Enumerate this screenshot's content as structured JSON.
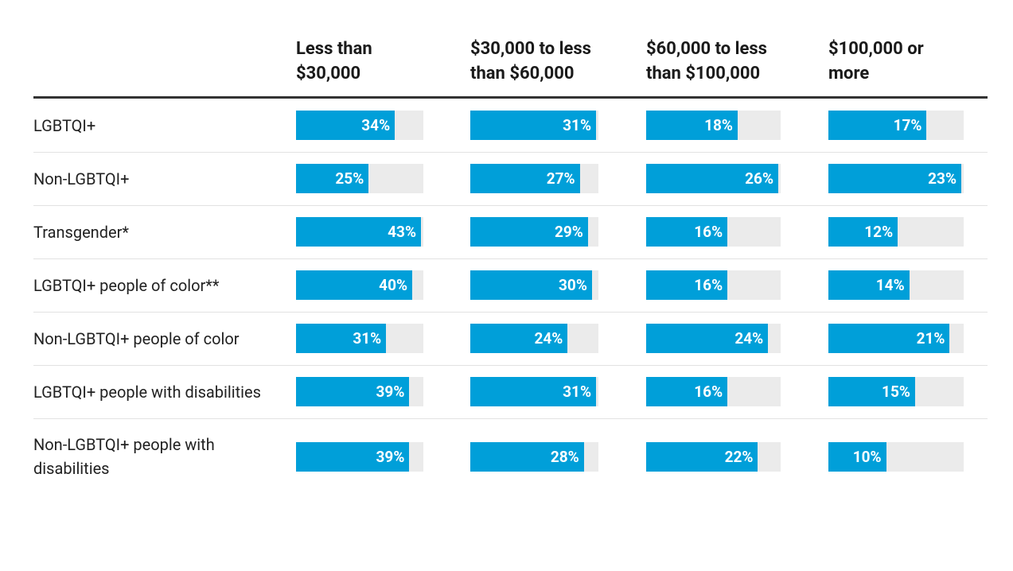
{
  "chart_data": {
    "type": "bar",
    "categories": [
      "LGBTQI+",
      "Non-LGBTQI+",
      "Transgender*",
      "LGBTQI+ people of color**",
      "Non-LGBTQI+ people of color",
      "LGBTQI+ people with disabilities",
      "Non-LGBTQI+ people with disabilities"
    ],
    "series": [
      {
        "name": "Less than $30,000",
        "color": "#009fd9",
        "values": [
          34,
          25,
          43,
          40,
          31,
          39,
          39
        ],
        "value_labels": [
          "34%",
          "25%",
          "43%",
          "40%",
          "31%",
          "39%",
          "39%"
        ]
      },
      {
        "name": "$30,000 to less than $60,000",
        "color": "#009fd9",
        "values": [
          31,
          27,
          29,
          30,
          24,
          31,
          28
        ],
        "value_labels": [
          "31%",
          "27%",
          "29%",
          "30%",
          "24%",
          "31%",
          "28%"
        ]
      },
      {
        "name": "$60,000 to less than $100,000",
        "color": "#009fd9",
        "values": [
          18,
          26,
          16,
          16,
          24,
          16,
          22
        ],
        "value_labels": [
          "18%",
          "26%",
          "16%",
          "16%",
          "24%",
          "16%",
          "22%"
        ]
      },
      {
        "name": "$100,000 or more",
        "color": "#009fd9",
        "values": [
          17,
          23,
          12,
          14,
          21,
          15,
          10
        ],
        "value_labels": [
          "17%",
          "23%",
          "12%",
          "14%",
          "21%",
          "15%",
          "10%"
        ]
      }
    ]
  }
}
